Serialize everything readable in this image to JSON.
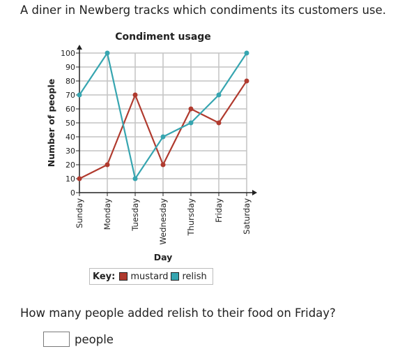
{
  "intro": "A diner in Newberg tracks which condiments its customers use.",
  "chart_data": {
    "type": "line",
    "title": "Condiment usage",
    "xlabel": "Day",
    "ylabel": "Number of people",
    "categories": [
      "Sunday",
      "Monday",
      "Tuesday",
      "Wednesday",
      "Thursday",
      "Friday",
      "Saturday"
    ],
    "y_ticks": [
      0,
      10,
      20,
      30,
      40,
      50,
      60,
      70,
      80,
      90,
      100
    ],
    "ylim": [
      0,
      100
    ],
    "grid": true,
    "series": [
      {
        "name": "mustard",
        "color": "#b03a2e",
        "values": [
          10,
          20,
          70,
          20,
          60,
          50,
          80
        ]
      },
      {
        "name": "relish",
        "color": "#36a5b0",
        "values": [
          70,
          100,
          10,
          40,
          50,
          70,
          100
        ]
      }
    ]
  },
  "legend": {
    "key_label": "Key:",
    "items": [
      {
        "label": "mustard",
        "color": "#b03a2e"
      },
      {
        "label": "relish",
        "color": "#36a5b0"
      }
    ]
  },
  "question": "How many people added relish to their food on Friday?",
  "answer": {
    "value": "",
    "unit": "people"
  }
}
